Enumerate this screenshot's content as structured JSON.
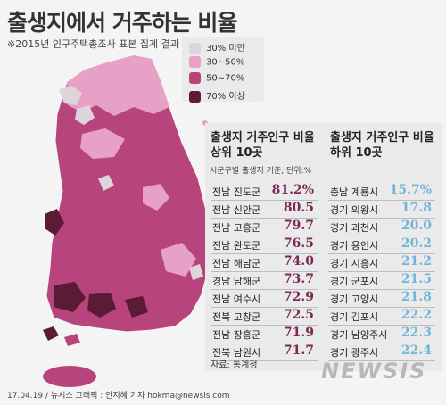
{
  "title": "출생지에서 거주하는 비율",
  "subtitle": "※2015년 인구주택총조사 표본 집계 결과",
  "legend": [
    {
      "label": "30% 미만",
      "color": "#ddd4dc"
    },
    {
      "label": "30~50%",
      "color": "#e7a0c6"
    },
    {
      "label": "50~70%",
      "color": "#b7447d"
    },
    {
      "label": "70% 이상",
      "color": "#5b1b34"
    }
  ],
  "panel": {
    "top_title": "출생지 거주인구 비율\n상위 10곳",
    "bottom_title": "출생지 거주인구 비율\n하위 10곳",
    "basis": "시군구별 출생지 기준, 단위:%",
    "top": [
      {
        "name": "전남 진도군",
        "value": "81.2"
      },
      {
        "name": "전남 신안군",
        "value": "80.5"
      },
      {
        "name": "전남 고흥군",
        "value": "79.7"
      },
      {
        "name": "전남 완도군",
        "value": "76.5"
      },
      {
        "name": "전남 해남군",
        "value": "74.0"
      },
      {
        "name": "경남 남해군",
        "value": "73.7"
      },
      {
        "name": "전남 여수시",
        "value": "72.9"
      },
      {
        "name": "전북 고창군",
        "value": "72.5"
      },
      {
        "name": "전남 장흥군",
        "value": "71.9"
      },
      {
        "name": "전북 남원시",
        "value": "71.7"
      }
    ],
    "bottom": [
      {
        "name": "충남 계룡시",
        "value": "15.7"
      },
      {
        "name": "경기 의왕시",
        "value": "17.8"
      },
      {
        "name": "경기 과천시",
        "value": "20.0"
      },
      {
        "name": "경기 용인시",
        "value": "20.2"
      },
      {
        "name": "경기 시흥시",
        "value": "21.2"
      },
      {
        "name": "경기 군포시",
        "value": "21.5"
      },
      {
        "name": "경기 고양시",
        "value": "21.8"
      },
      {
        "name": "경기 김포시",
        "value": "22.2"
      },
      {
        "name": "경기 남양주시",
        "value": "22.3"
      },
      {
        "name": "경기 광주시",
        "value": "22.4"
      }
    ],
    "top_first_suffix": "%",
    "bottom_first_suffix": "%"
  },
  "source": "자료: 통계청",
  "credit": "17.04.19 / 뉴시스 그래픽 : 안지혜 기자 hokma@newsis.com",
  "logo": "NEWSIS"
}
